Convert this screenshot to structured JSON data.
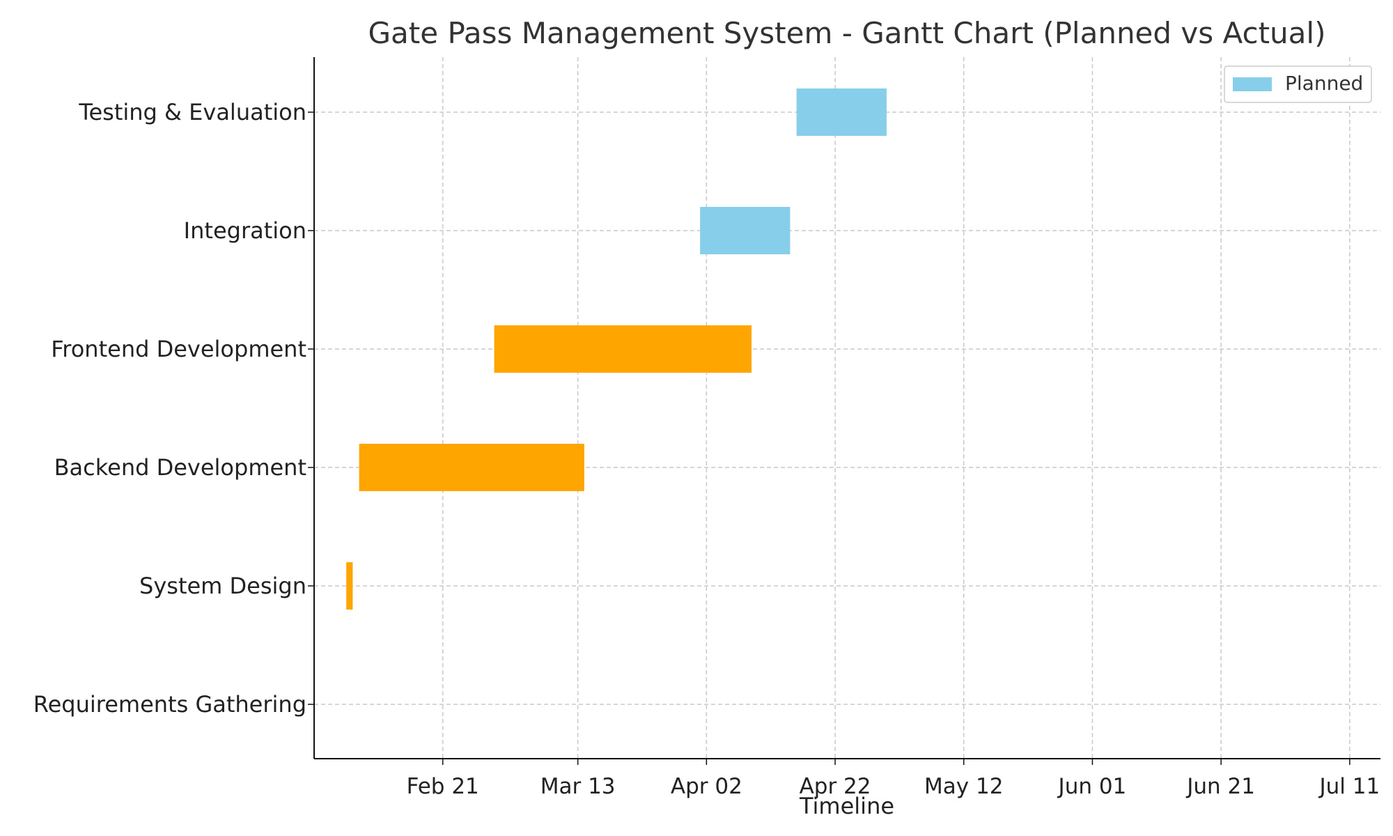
{
  "chart_data": {
    "type": "gantt",
    "title": "Gate Pass Management System - Gantt Chart (Planned vs Actual)",
    "xlabel": "Timeline",
    "ylabel": "",
    "grid": true,
    "legend_position": "top-right",
    "x_range": [
      "2024-02-01",
      "2024-07-21"
    ],
    "x_ticks": [
      {
        "date": "2024-02-21",
        "label": "Feb 21"
      },
      {
        "date": "2024-03-13",
        "label": "Mar 13"
      },
      {
        "date": "2024-04-02",
        "label": "Apr 02"
      },
      {
        "date": "2024-04-22",
        "label": "Apr 22"
      },
      {
        "date": "2024-05-12",
        "label": "May 12"
      },
      {
        "date": "2024-06-01",
        "label": "Jun 01"
      },
      {
        "date": "2024-06-21",
        "label": "Jun 21"
      },
      {
        "date": "2024-07-11",
        "label": "Jul 11"
      }
    ],
    "tasks": [
      "Requirements Gathering",
      "System Design",
      "Backend Development",
      "Frontend Development",
      "Integration",
      "Testing & Evaluation"
    ],
    "legend": [
      {
        "label": "Planned",
        "color": "#87ceeb"
      }
    ],
    "bars": [
      {
        "task": "System Design",
        "kind": "actual",
        "start": "2024-02-06",
        "end": "2024-02-07",
        "color": "#ffa500"
      },
      {
        "task": "Backend Development",
        "kind": "actual",
        "start": "2024-02-08",
        "end": "2024-03-14",
        "color": "#ffa500"
      },
      {
        "task": "Frontend Development",
        "kind": "actual",
        "start": "2024-02-29",
        "end": "2024-04-09",
        "color": "#ffa500"
      },
      {
        "task": "Integration",
        "kind": "planned",
        "start": "2024-04-01",
        "end": "2024-04-15",
        "color": "#87ceeb"
      },
      {
        "task": "Testing & Evaluation",
        "kind": "planned",
        "start": "2024-04-16",
        "end": "2024-04-30",
        "color": "#87ceeb"
      }
    ]
  }
}
